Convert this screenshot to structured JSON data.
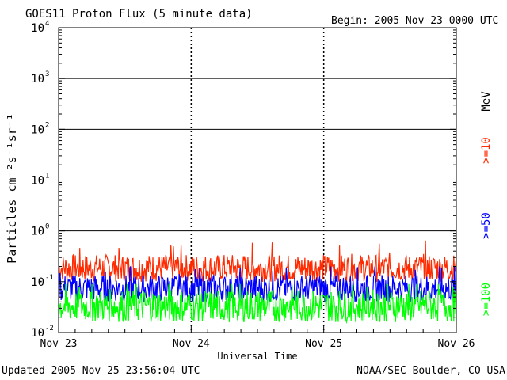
{
  "chart_data": {
    "type": "line",
    "title": "GOES11 Proton Flux (5 minute data)",
    "begin_label": "Begin: 2005 Nov 23 0000 UTC",
    "xlabel": "Universal Time",
    "ylabel": "Particles cm⁻²s⁻¹sr⁻¹",
    "y_scale": "log",
    "ylim": [
      0.01,
      10000
    ],
    "yticks": [
      {
        "value": 0.01,
        "base": "10",
        "exp": "-2"
      },
      {
        "value": 0.1,
        "base": "10",
        "exp": "-1"
      },
      {
        "value": 1,
        "base": "10",
        "exp": "0"
      },
      {
        "value": 10,
        "base": "10",
        "exp": "1"
      },
      {
        "value": 100,
        "base": "10",
        "exp": "2"
      },
      {
        "value": 1000,
        "base": "10",
        "exp": "3"
      },
      {
        "value": 10000,
        "base": "10",
        "exp": "4"
      }
    ],
    "xlim_days": [
      0,
      3
    ],
    "xticks": [
      {
        "value": 0,
        "label": "Nov 23"
      },
      {
        "value": 1,
        "label": "Nov 24"
      },
      {
        "value": 2,
        "label": "Nov 25"
      },
      {
        "value": 3,
        "label": "Nov 26"
      }
    ],
    "reference_lines": [
      {
        "value": 1,
        "style": "solid"
      },
      {
        "value": 10,
        "style": "dashed"
      },
      {
        "value": 100,
        "style": "solid"
      },
      {
        "value": 1000,
        "style": "solid"
      }
    ],
    "units_label": "MeV",
    "series": [
      {
        "name": ">=10",
        "color": "#ff2a00",
        "low": 0.1,
        "high": 0.35,
        "peak": 0.8
      },
      {
        "name": ">=50",
        "color": "#0000ff",
        "low": 0.04,
        "high": 0.14,
        "peak": 0.2
      },
      {
        "name": ">=100",
        "color": "#00ff00",
        "low": 0.016,
        "high": 0.07,
        "peak": 0.09
      }
    ]
  },
  "footer": {
    "updated": "Updated 2005 Nov 25 23:56:04 UTC",
    "source": "NOAA/SEC Boulder, CO USA"
  }
}
